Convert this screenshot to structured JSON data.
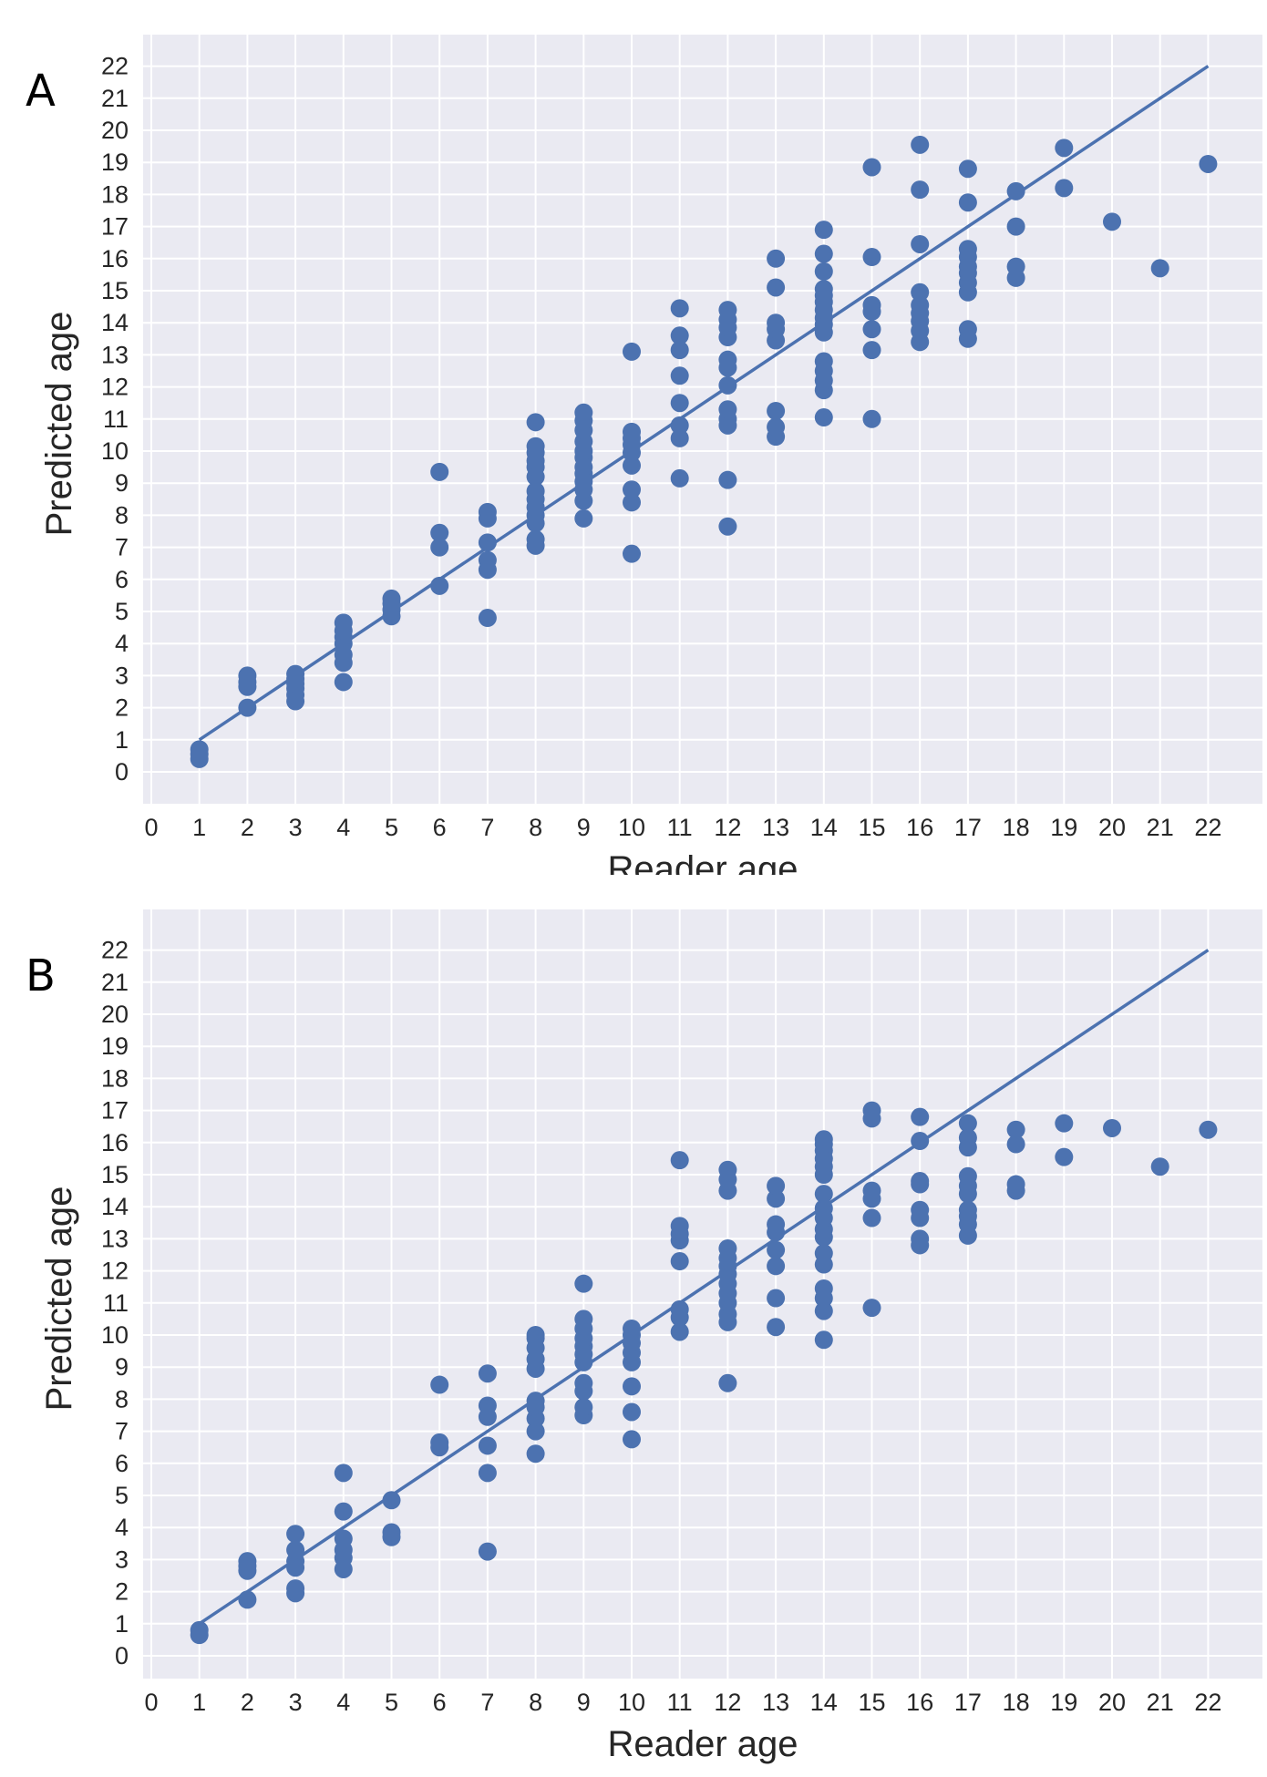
{
  "panels": [
    {
      "letter": "A"
    },
    {
      "letter": "B"
    }
  ],
  "chart_data": [
    {
      "type": "scatter",
      "panel": "A",
      "xlabel": "Reader age",
      "ylabel": "Predicted age",
      "xlim": [
        0,
        22
      ],
      "ylim": [
        0,
        22
      ],
      "xticks": [
        "0",
        "1",
        "2",
        "3",
        "4",
        "5",
        "6",
        "7",
        "8",
        "9",
        "10",
        "11",
        "12",
        "13",
        "14",
        "15",
        "16",
        "17",
        "18",
        "19",
        "20",
        "21",
        "22"
      ],
      "yticks": [
        "0",
        "1",
        "2",
        "3",
        "4",
        "5",
        "6",
        "7",
        "8",
        "9",
        "10",
        "11",
        "12",
        "13",
        "14",
        "15",
        "16",
        "17",
        "18",
        "19",
        "20",
        "21",
        "22"
      ],
      "grid": true,
      "point_color": "#4c72b0",
      "line": {
        "type": "identity",
        "from": [
          1,
          1
        ],
        "to": [
          22,
          22
        ],
        "color": "#4c72b0"
      },
      "points": [
        [
          1,
          0.4
        ],
        [
          1,
          0.55
        ],
        [
          1,
          0.7
        ],
        [
          2,
          2.0
        ],
        [
          2,
          2.65
        ],
        [
          2,
          2.8
        ],
        [
          2,
          3.0
        ],
        [
          3,
          2.2
        ],
        [
          3,
          2.4
        ],
        [
          3,
          2.6
        ],
        [
          3,
          2.75
        ],
        [
          3,
          2.9
        ],
        [
          3,
          3.05
        ],
        [
          4,
          2.8
        ],
        [
          4,
          3.4
        ],
        [
          4,
          3.65
        ],
        [
          4,
          4.0
        ],
        [
          4,
          4.2
        ],
        [
          4,
          4.4
        ],
        [
          4,
          4.65
        ],
        [
          5,
          4.85
        ],
        [
          5,
          5.05
        ],
        [
          5,
          5.25
        ],
        [
          5,
          5.4
        ],
        [
          6,
          5.8
        ],
        [
          6,
          7.0
        ],
        [
          6,
          7.45
        ],
        [
          6,
          9.35
        ],
        [
          7,
          4.8
        ],
        [
          7,
          6.3
        ],
        [
          7,
          6.6
        ],
        [
          7,
          7.15
        ],
        [
          7,
          7.9
        ],
        [
          7,
          8.1
        ],
        [
          8,
          7.05
        ],
        [
          8,
          7.25
        ],
        [
          8,
          7.75
        ],
        [
          8,
          8.0
        ],
        [
          8,
          8.25
        ],
        [
          8,
          8.5
        ],
        [
          8,
          8.75
        ],
        [
          8,
          9.2
        ],
        [
          8,
          9.5
        ],
        [
          8,
          9.7
        ],
        [
          8,
          9.95
        ],
        [
          8,
          10.15
        ],
        [
          8,
          10.9
        ],
        [
          9,
          7.9
        ],
        [
          9,
          8.45
        ],
        [
          9,
          8.8
        ],
        [
          9,
          9.05
        ],
        [
          9,
          9.3
        ],
        [
          9,
          9.5
        ],
        [
          9,
          9.8
        ],
        [
          9,
          10.0
        ],
        [
          9,
          10.3
        ],
        [
          9,
          10.65
        ],
        [
          9,
          10.95
        ],
        [
          9,
          11.2
        ],
        [
          10,
          6.8
        ],
        [
          10,
          8.4
        ],
        [
          10,
          8.8
        ],
        [
          10,
          9.55
        ],
        [
          10,
          9.95
        ],
        [
          10,
          10.2
        ],
        [
          10,
          10.4
        ],
        [
          10,
          10.6
        ],
        [
          10,
          13.1
        ],
        [
          11,
          9.15
        ],
        [
          11,
          10.4
        ],
        [
          11,
          10.8
        ],
        [
          11,
          11.5
        ],
        [
          11,
          12.35
        ],
        [
          11,
          13.15
        ],
        [
          11,
          13.6
        ],
        [
          11,
          14.45
        ],
        [
          12,
          7.65
        ],
        [
          12,
          9.1
        ],
        [
          12,
          10.8
        ],
        [
          12,
          11.0
        ],
        [
          12,
          11.3
        ],
        [
          12,
          12.05
        ],
        [
          12,
          12.6
        ],
        [
          12,
          12.85
        ],
        [
          12,
          13.55
        ],
        [
          12,
          13.85
        ],
        [
          12,
          14.1
        ],
        [
          12,
          14.4
        ],
        [
          13,
          10.45
        ],
        [
          13,
          10.75
        ],
        [
          13,
          11.25
        ],
        [
          13,
          13.45
        ],
        [
          13,
          13.8
        ],
        [
          13,
          14.0
        ],
        [
          13,
          15.1
        ],
        [
          13,
          16.0
        ],
        [
          14,
          11.05
        ],
        [
          14,
          11.9
        ],
        [
          14,
          12.2
        ],
        [
          14,
          12.5
        ],
        [
          14,
          12.8
        ],
        [
          14,
          13.7
        ],
        [
          14,
          13.95
        ],
        [
          14,
          14.15
        ],
        [
          14,
          14.4
        ],
        [
          14,
          14.65
        ],
        [
          14,
          14.85
        ],
        [
          14,
          15.05
        ],
        [
          14,
          15.6
        ],
        [
          14,
          16.15
        ],
        [
          14,
          16.9
        ],
        [
          15,
          11.0
        ],
        [
          15,
          13.15
        ],
        [
          15,
          13.8
        ],
        [
          15,
          14.35
        ],
        [
          15,
          14.55
        ],
        [
          15,
          16.05
        ],
        [
          15,
          18.85
        ],
        [
          16,
          13.4
        ],
        [
          16,
          13.75
        ],
        [
          16,
          14.05
        ],
        [
          16,
          14.3
        ],
        [
          16,
          14.55
        ],
        [
          16,
          14.95
        ],
        [
          16,
          16.45
        ],
        [
          16,
          18.15
        ],
        [
          16,
          19.55
        ],
        [
          17,
          13.5
        ],
        [
          17,
          13.8
        ],
        [
          17,
          14.95
        ],
        [
          17,
          15.25
        ],
        [
          17,
          15.55
        ],
        [
          17,
          15.75
        ],
        [
          17,
          16.05
        ],
        [
          17,
          16.3
        ],
        [
          17,
          17.75
        ],
        [
          17,
          18.8
        ],
        [
          18,
          15.4
        ],
        [
          18,
          15.75
        ],
        [
          18,
          17.0
        ],
        [
          18,
          18.1
        ],
        [
          19,
          18.2
        ],
        [
          19,
          19.45
        ],
        [
          20,
          17.15
        ],
        [
          21,
          15.7
        ],
        [
          22,
          18.95
        ]
      ]
    },
    {
      "type": "scatter",
      "panel": "B",
      "xlabel": "Reader age",
      "ylabel": "Predicted age",
      "xlim": [
        0,
        22
      ],
      "ylim": [
        0,
        22
      ],
      "xticks": [
        "0",
        "1",
        "2",
        "3",
        "4",
        "5",
        "6",
        "7",
        "8",
        "9",
        "10",
        "11",
        "12",
        "13",
        "14",
        "15",
        "16",
        "17",
        "18",
        "19",
        "20",
        "21",
        "22"
      ],
      "yticks": [
        "0",
        "1",
        "2",
        "3",
        "4",
        "5",
        "6",
        "7",
        "8",
        "9",
        "10",
        "11",
        "12",
        "13",
        "14",
        "15",
        "16",
        "17",
        "18",
        "19",
        "20",
        "21",
        "22"
      ],
      "grid": true,
      "point_color": "#4c72b0",
      "line": {
        "type": "identity",
        "from": [
          1,
          1
        ],
        "to": [
          22,
          22
        ],
        "color": "#4c72b0"
      },
      "points": [
        [
          1,
          0.65
        ],
        [
          1,
          0.8
        ],
        [
          2,
          1.75
        ],
        [
          2,
          2.65
        ],
        [
          2,
          2.8
        ],
        [
          2,
          2.95
        ],
        [
          3,
          1.95
        ],
        [
          3,
          2.1
        ],
        [
          3,
          2.75
        ],
        [
          3,
          2.95
        ],
        [
          3,
          3.3
        ],
        [
          3,
          3.8
        ],
        [
          4,
          2.7
        ],
        [
          4,
          3.05
        ],
        [
          4,
          3.3
        ],
        [
          4,
          3.65
        ],
        [
          4,
          4.5
        ],
        [
          4,
          5.7
        ],
        [
          5,
          3.7
        ],
        [
          5,
          3.85
        ],
        [
          5,
          4.85
        ],
        [
          6,
          6.5
        ],
        [
          6,
          6.65
        ],
        [
          6,
          8.45
        ],
        [
          7,
          3.25
        ],
        [
          7,
          5.7
        ],
        [
          7,
          6.55
        ],
        [
          7,
          7.45
        ],
        [
          7,
          7.8
        ],
        [
          7,
          8.8
        ],
        [
          8,
          6.3
        ],
        [
          8,
          7.0
        ],
        [
          8,
          7.4
        ],
        [
          8,
          7.75
        ],
        [
          8,
          7.95
        ],
        [
          8,
          8.95
        ],
        [
          8,
          9.25
        ],
        [
          8,
          9.6
        ],
        [
          8,
          9.9
        ],
        [
          8,
          10.0
        ],
        [
          9,
          7.5
        ],
        [
          9,
          7.75
        ],
        [
          9,
          8.25
        ],
        [
          9,
          8.5
        ],
        [
          9,
          9.15
        ],
        [
          9,
          9.4
        ],
        [
          9,
          9.65
        ],
        [
          9,
          9.9
        ],
        [
          9,
          10.2
        ],
        [
          9,
          10.5
        ],
        [
          9,
          11.6
        ],
        [
          10,
          6.75
        ],
        [
          10,
          7.6
        ],
        [
          10,
          8.4
        ],
        [
          10,
          9.15
        ],
        [
          10,
          9.45
        ],
        [
          10,
          9.75
        ],
        [
          10,
          10.0
        ],
        [
          10,
          10.2
        ],
        [
          11,
          10.1
        ],
        [
          11,
          10.55
        ],
        [
          11,
          10.8
        ],
        [
          11,
          12.3
        ],
        [
          11,
          12.95
        ],
        [
          11,
          13.15
        ],
        [
          11,
          13.4
        ],
        [
          11,
          15.45
        ],
        [
          12,
          8.5
        ],
        [
          12,
          10.4
        ],
        [
          12,
          10.65
        ],
        [
          12,
          11.0
        ],
        [
          12,
          11.3
        ],
        [
          12,
          11.6
        ],
        [
          12,
          11.9
        ],
        [
          12,
          12.15
        ],
        [
          12,
          12.4
        ],
        [
          12,
          12.7
        ],
        [
          12,
          14.5
        ],
        [
          12,
          14.85
        ],
        [
          12,
          15.15
        ],
        [
          13,
          10.25
        ],
        [
          13,
          11.15
        ],
        [
          13,
          12.15
        ],
        [
          13,
          12.65
        ],
        [
          13,
          13.2
        ],
        [
          13,
          13.45
        ],
        [
          13,
          14.25
        ],
        [
          13,
          14.65
        ],
        [
          14,
          9.85
        ],
        [
          14,
          10.75
        ],
        [
          14,
          11.15
        ],
        [
          14,
          11.45
        ],
        [
          14,
          12.2
        ],
        [
          14,
          12.55
        ],
        [
          14,
          13.05
        ],
        [
          14,
          13.3
        ],
        [
          14,
          13.65
        ],
        [
          14,
          13.95
        ],
        [
          14,
          14.4
        ],
        [
          14,
          15.0
        ],
        [
          14,
          15.25
        ],
        [
          14,
          15.5
        ],
        [
          14,
          15.75
        ],
        [
          14,
          15.95
        ],
        [
          14,
          16.1
        ],
        [
          15,
          10.85
        ],
        [
          15,
          13.65
        ],
        [
          15,
          14.25
        ],
        [
          15,
          14.5
        ],
        [
          15,
          16.75
        ],
        [
          15,
          17.0
        ],
        [
          16,
          12.8
        ],
        [
          16,
          13.0
        ],
        [
          16,
          13.65
        ],
        [
          16,
          13.9
        ],
        [
          16,
          14.7
        ],
        [
          16,
          14.8
        ],
        [
          16,
          16.05
        ],
        [
          16,
          16.8
        ],
        [
          17,
          13.1
        ],
        [
          17,
          13.45
        ],
        [
          17,
          13.7
        ],
        [
          17,
          13.9
        ],
        [
          17,
          14.4
        ],
        [
          17,
          14.65
        ],
        [
          17,
          14.95
        ],
        [
          17,
          15.85
        ],
        [
          17,
          16.15
        ],
        [
          17,
          16.6
        ],
        [
          18,
          14.5
        ],
        [
          18,
          14.7
        ],
        [
          18,
          15.95
        ],
        [
          18,
          16.4
        ],
        [
          19,
          15.55
        ],
        [
          19,
          16.6
        ],
        [
          20,
          16.45
        ],
        [
          21,
          15.25
        ],
        [
          22,
          16.4
        ]
      ]
    }
  ]
}
